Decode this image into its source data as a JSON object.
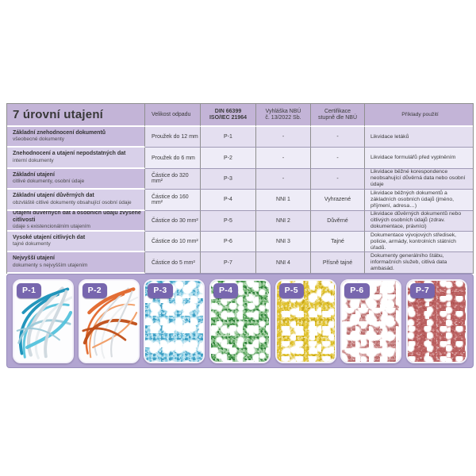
{
  "table": {
    "title": "7 úrovní utajení",
    "columns": {
      "size": "Velikost odpadu",
      "din_line1": "DIN 66399",
      "din_line2": "ISO/IEC   21964",
      "decree_line1": "Vyhláška NBÚ",
      "decree_line2": "č. 13/2022 Sb.",
      "cert_line1": "Certifikace",
      "cert_line2": "stupně dle NBÚ",
      "examples": "Příklady použití"
    },
    "rows": [
      {
        "title": "Základní znehodnocení dokumentů",
        "subtitle": "všeobecné dokumenty",
        "size": "Proužek do 12 mm",
        "din": "P-1",
        "decree": "-",
        "cert": "-",
        "example": "Likvidace letáků"
      },
      {
        "title": "Znehodnocení a utajení nepodstatných dat",
        "subtitle": "interní dokumenty",
        "size": "Proužek do 6 mm",
        "din": "P-2",
        "decree": "-",
        "cert": "-",
        "example": "Likvidace formulářů před vyplněním"
      },
      {
        "title": "Základní utajení",
        "subtitle": "citlivé dokumenty, osobní údaje",
        "size": "Částice do 320 mm²",
        "din": "P-3",
        "decree": "-",
        "cert": "-",
        "example": "Likvidace běžné korespondence neobsahující důvěrná data nebo osobní údaje"
      },
      {
        "title": "Základní utajení důvěrných dat",
        "subtitle": "obzvláště citlivé dokumenty obsahující osobní údaje",
        "size": "Částice do 160 mm²",
        "din": "P-4",
        "decree": "NNI 1",
        "cert": "Vyhrazené",
        "example": "Likvidace běžných dokumentů a základních osobních údajů (jméno, příjmení, adresa…)"
      },
      {
        "title": "Utajení důvěrných dat a osobních údajů zvýšené citlivosti",
        "subtitle": "údaje s existencionálním utajením",
        "size": "Částice do 30 mm²",
        "din": "P-5",
        "decree": "NNI 2",
        "cert": "Důvěrné",
        "example": "Likvidace důvěrných dokumentů nebo citlivých osobních údajů (zdrav. dokumentace, právníci)"
      },
      {
        "title": "Vysoké utajení citlivých dat",
        "subtitle": "tajné dokumenty",
        "size": "Částice do 10 mm²",
        "din": "P-6",
        "decree": "NNI 3",
        "cert": "Tajné",
        "example": "Dokumentace vývojových středisek, policie, armády, kontrolních státních úřadů."
      },
      {
        "title": "Nejvyšší utajení",
        "subtitle": "dokumenty s nejvyšším utajením",
        "size": "Částice do 5 mm²",
        "din": "P-7",
        "decree": "NNI 4",
        "cert": "Přísně tajné",
        "example": "Dokumenty generálního štábu, informačních služeb, citlivá data ambasád."
      }
    ]
  },
  "gallery": {
    "cards": [
      {
        "label": "P-1",
        "style": "strips",
        "base": "#fdfdfe",
        "colors": [
          "#1790b8",
          "#54c2dc",
          "#cfd8de",
          "#9cc9d8",
          "#e8edf0"
        ]
      },
      {
        "label": "P-2",
        "style": "strips",
        "base": "#fdfdfe",
        "colors": [
          "#e2662a",
          "#f09b63",
          "#d6dade",
          "#bf4d16",
          "#eceef0"
        ]
      },
      {
        "label": "P-3",
        "style": "confetti",
        "base": "#eef7fb",
        "colors": [
          "#62b8d8",
          "#8ed0e6",
          "#3f9fc4",
          "#bfe4f0"
        ],
        "density": 24,
        "white_blobs": 4
      },
      {
        "label": "P-4",
        "style": "confetti",
        "base": "#d9ebd9",
        "colors": [
          "#4f9b52",
          "#77b877",
          "#2f7f3a",
          "#a9d2a9"
        ],
        "density": 27,
        "white_blobs": 5
      },
      {
        "label": "P-5",
        "style": "confetti",
        "base": "#f5ecc4",
        "colors": [
          "#e0c22e",
          "#ecd35e",
          "#c9a81a",
          "#f0e29a"
        ],
        "density": 27,
        "white_blobs": 4
      },
      {
        "label": "P-6",
        "style": "confetti",
        "base": "#f0e6e5",
        "colors": [
          "#bc6f6f",
          "#cf9292",
          "#a85757",
          "#ddb4b4"
        ],
        "density": 18,
        "white_blobs": 6
      },
      {
        "label": "P-7",
        "style": "confetti",
        "base": "#e5cfcf",
        "colors": [
          "#c06868",
          "#ad4f4f",
          "#d79494",
          "#b85e5e"
        ],
        "density": 29,
        "white_blobs": 3
      }
    ]
  },
  "colors": {
    "css": {
      "text": "#3a3a3a",
      "header-bg": "#c3b4d7",
      "col1-odd": "#c8bbdd",
      "col1-even": "#d8d0e9",
      "cell-odd": "#e4dff0",
      "cell-even": "#eeecf7",
      "strip-bg": "#b2a5d1",
      "badge-bg": "#7766ae",
      "grid-line": "#8f8f8f"
    }
  }
}
